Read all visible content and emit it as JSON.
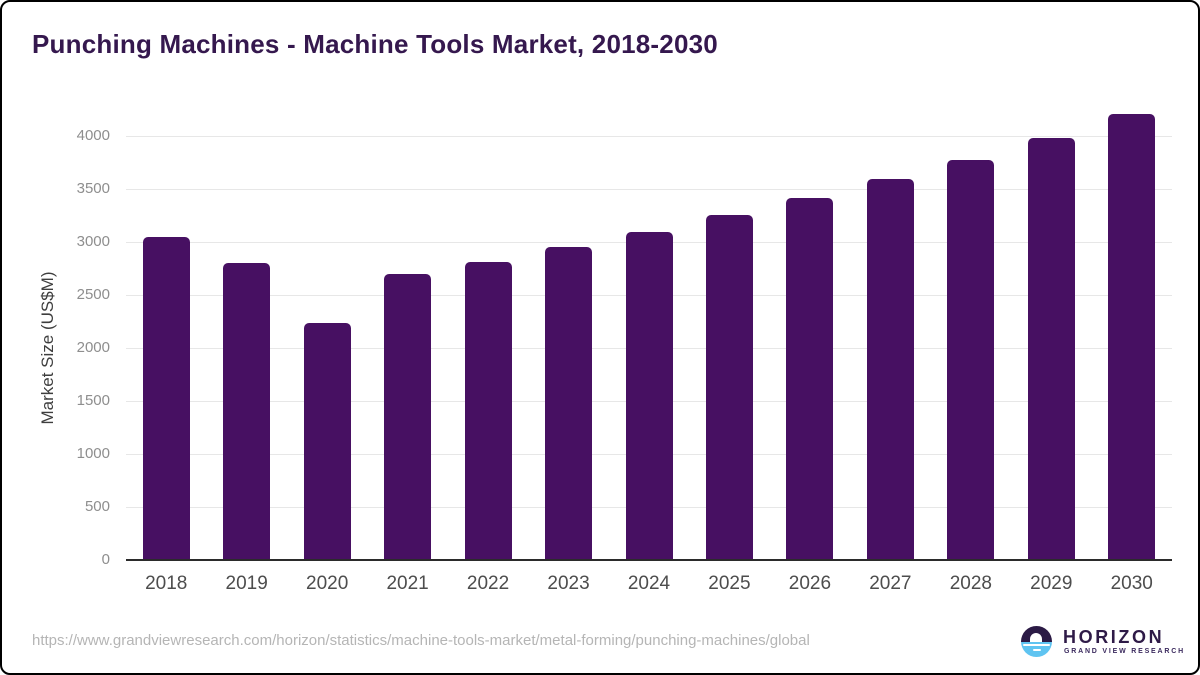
{
  "header": {
    "title": "Punching Machines - Machine Tools Market, 2018-2030"
  },
  "chart_data": {
    "type": "bar",
    "title": "Punching Machines - Machine Tools Market, 2018-2030",
    "categories": [
      "2018",
      "2019",
      "2020",
      "2021",
      "2022",
      "2023",
      "2024",
      "2025",
      "2026",
      "2027",
      "2028",
      "2029",
      "2030"
    ],
    "values": [
      3050,
      2805,
      2240,
      2695,
      2810,
      2955,
      3100,
      3255,
      3415,
      3595,
      3780,
      3980,
      4215
    ],
    "xlabel": "",
    "ylabel": "Market Size (US$M)",
    "ylim": [
      0,
      4400
    ],
    "yticks": [
      0,
      500,
      1000,
      1500,
      2000,
      2500,
      3000,
      3500,
      4000
    ],
    "grid": true,
    "legend": false,
    "bar_color": "#471062"
  },
  "footer": {
    "source_url": "https://www.grandviewresearch.com/horizon/statistics/machine-tools-market/metal-forming/punching-machines/global",
    "logo": {
      "icon": "horizon-sunset-circle-icon",
      "name": "HORIZON",
      "subtitle": "GRAND VIEW RESEARCH"
    }
  },
  "colors": {
    "bar": "#471062",
    "title": "#35184e",
    "gridline": "#e7e7e7",
    "axis_line": "#2b2b2b",
    "y_tick_text": "#8e8e8e",
    "x_tick_text": "#4d4d4d",
    "url_text": "#b5b5b5",
    "logo_navy": "#2b1a45",
    "logo_blue": "#5fc4f1"
  }
}
